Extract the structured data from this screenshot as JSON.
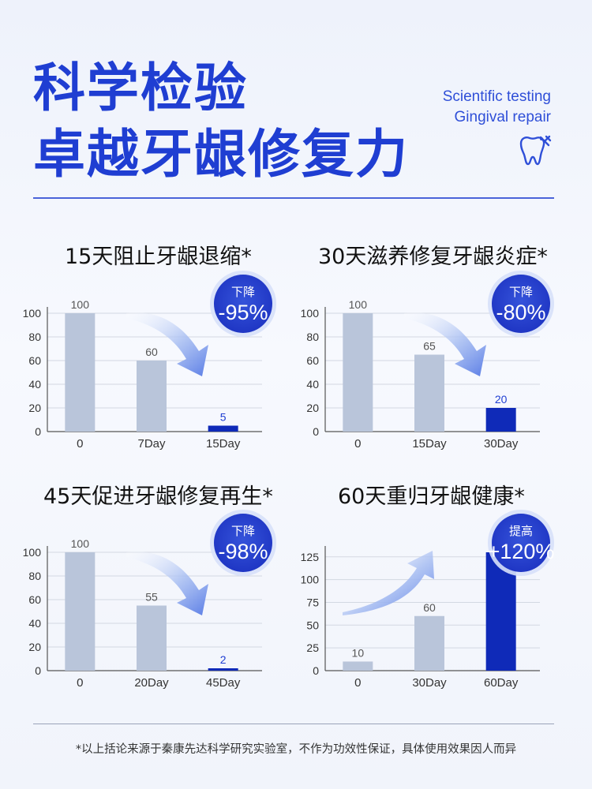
{
  "header": {
    "title_line1": "科学检验",
    "title_line2": "卓越牙龈修复力",
    "subtitle_line1": "Scientific testing",
    "subtitle_line2": "Gingival repair",
    "icon": "tooth-repair-icon"
  },
  "colors": {
    "accent": "#1f3ed2",
    "bar_gray": "#b9c5da",
    "bar_highlight": "#0f2ab8",
    "badge": "#2440cc"
  },
  "footnote": "*以上括论来源于秦康先达科学研究实验室，不作为功效性保证，具体使用效果因人而异",
  "chart_data": [
    {
      "type": "bar",
      "title": "15天阻止牙龈退缩*",
      "categories": [
        "0",
        "7Day",
        "15Day"
      ],
      "values": [
        100,
        60,
        5
      ],
      "ylim": [
        0,
        100
      ],
      "yticks": [
        0,
        20,
        40,
        60,
        80,
        100
      ],
      "highlight_index": 2,
      "badge": {
        "top": "下降",
        "value": "-95%"
      },
      "arrow": "down"
    },
    {
      "type": "bar",
      "title": "30天滋养修复牙龈炎症*",
      "categories": [
        "0",
        "15Day",
        "30Day"
      ],
      "values": [
        100,
        65,
        20
      ],
      "ylim": [
        0,
        100
      ],
      "yticks": [
        0,
        20,
        40,
        60,
        80,
        100
      ],
      "highlight_index": 2,
      "badge": {
        "top": "下降",
        "value": "-80%"
      },
      "arrow": "down"
    },
    {
      "type": "bar",
      "title": "45天促进牙龈修复再生*",
      "categories": [
        "0",
        "20Day",
        "45Day"
      ],
      "values": [
        100,
        55,
        2
      ],
      "ylim": [
        0,
        100
      ],
      "yticks": [
        0,
        20,
        40,
        60,
        80,
        100
      ],
      "highlight_index": 2,
      "badge": {
        "top": "下降",
        "value": "-98%"
      },
      "arrow": "down"
    },
    {
      "type": "bar",
      "title": "60天重归牙龈健康*",
      "categories": [
        "0",
        "30Day",
        "60Day"
      ],
      "values": [
        10,
        60,
        130
      ],
      "ylim": [
        0,
        130
      ],
      "yticks": [
        0,
        25,
        50,
        75,
        100,
        125
      ],
      "highlight_index": 2,
      "badge": {
        "top": "提高",
        "value": "+120%"
      },
      "arrow": "up"
    }
  ]
}
